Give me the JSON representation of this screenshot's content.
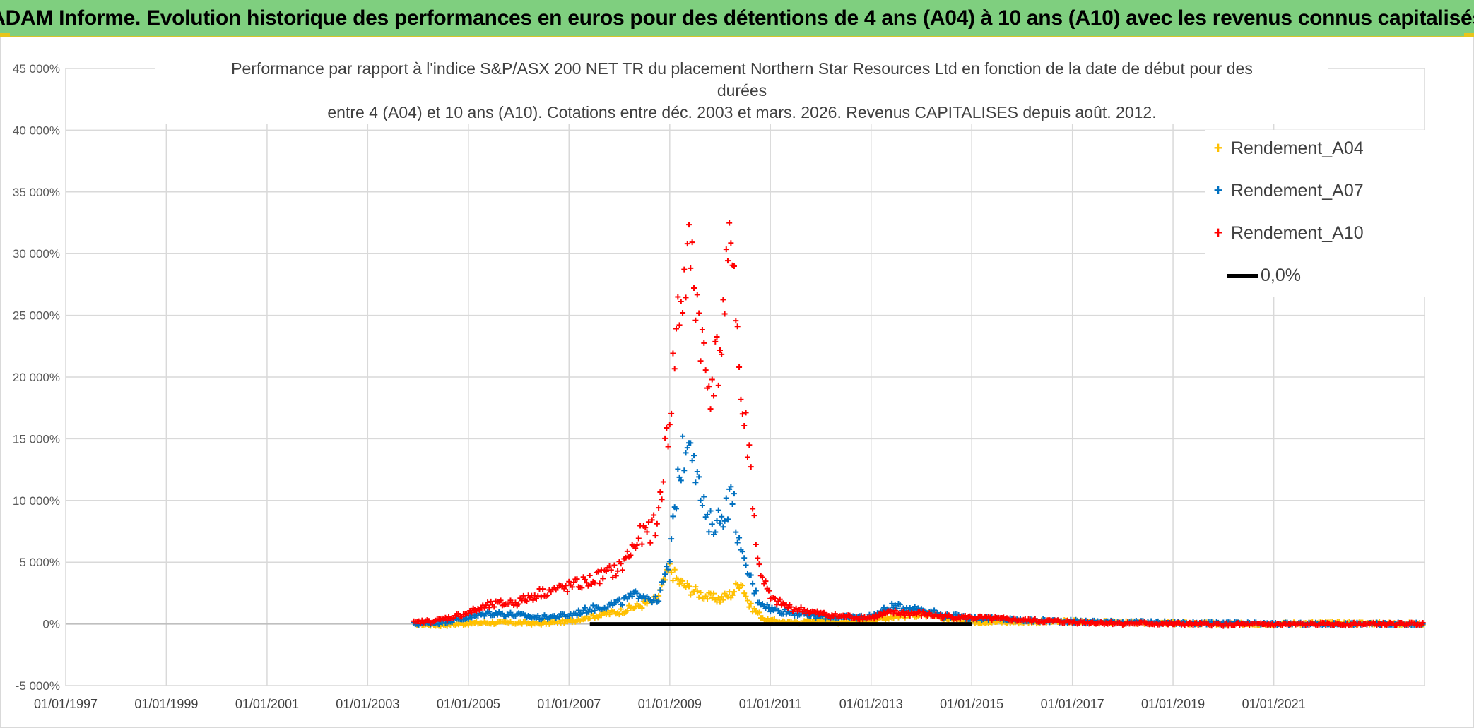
{
  "banner": {
    "title": "ADAM Informe. Evolution historique des performances en euros pour des détentions de 4 ans (A04) à 10 ans (A10) avec les revenus connus capitalisés"
  },
  "colors": {
    "banner_bg": "#7fcf7f",
    "A04": "#ffc000",
    "A07": "#0070c0",
    "A10": "#ff0000",
    "zero_line": "#000000",
    "grid": "#d9d9d9"
  },
  "chart_data": {
    "type": "scatter",
    "title_lines": [
      "Performance par rapport à l'indice S&P/ASX 200 NET TR  du placement Northern Star Resources Ltd en fonction de la date de début pour des",
      "durées",
      "entre 4 (A04) et 10 ans (A10). Cotations entre déc. 2003 et mars. 2026. Revenus CAPITALISES depuis août. 2012."
    ],
    "xlabel": "",
    "ylabel": "",
    "x_range": [
      "1997-01-01",
      "2023-12-31"
    ],
    "ylim": [
      -5000,
      45000
    ],
    "y_ticks": [
      -5000,
      0,
      5000,
      10000,
      15000,
      20000,
      25000,
      30000,
      35000,
      40000,
      45000
    ],
    "y_tick_labels": [
      "-5 000%",
      "0%",
      "5 000%",
      "10 000%",
      "15 000%",
      "20 000%",
      "25 000%",
      "30 000%",
      "35 000%",
      "40 000%",
      "45 000%"
    ],
    "x_ticks": [
      "1997-01-01",
      "1999-01-01",
      "2001-01-01",
      "2003-01-01",
      "2005-01-01",
      "2007-01-01",
      "2009-01-01",
      "2011-01-01",
      "2013-01-01",
      "2015-01-01",
      "2017-01-01",
      "2019-01-01",
      "2021-01-01"
    ],
    "x_tick_labels": [
      "01/01/1997",
      "01/01/1999",
      "01/01/2001",
      "01/01/2003",
      "01/01/2005",
      "01/01/2007",
      "01/01/2009",
      "01/01/2011",
      "01/01/2013",
      "01/01/2015",
      "01/01/2017",
      "01/01/2019",
      "01/01/2021"
    ],
    "grid": true,
    "legend_position": "top-right",
    "series": [
      {
        "name": "Rendement_A04",
        "marker": "+",
        "color": "#ffc000",
        "points": [
          [
            "2003-12-01",
            0
          ],
          [
            "2004-06-01",
            -100
          ],
          [
            "2005-01-01",
            50
          ],
          [
            "2005-06-01",
            100
          ],
          [
            "2006-01-01",
            80
          ],
          [
            "2006-06-01",
            30
          ],
          [
            "2007-01-01",
            200
          ],
          [
            "2007-06-01",
            600
          ],
          [
            "2008-01-01",
            1000
          ],
          [
            "2008-06-01",
            1500
          ],
          [
            "2008-10-01",
            2000
          ],
          [
            "2009-01-01",
            4500
          ],
          [
            "2009-03-01",
            3500
          ],
          [
            "2009-06-01",
            2800
          ],
          [
            "2009-10-01",
            2200
          ],
          [
            "2010-01-01",
            2000
          ],
          [
            "2010-04-01",
            2500
          ],
          [
            "2010-06-01",
            3600
          ],
          [
            "2010-08-01",
            1500
          ],
          [
            "2010-12-01",
            300
          ],
          [
            "2011-06-01",
            100
          ],
          [
            "2012-01-01",
            300
          ],
          [
            "2012-06-01",
            100
          ],
          [
            "2013-01-01",
            300
          ],
          [
            "2013-06-01",
            600
          ],
          [
            "2014-01-01",
            800
          ],
          [
            "2014-06-01",
            500
          ],
          [
            "2015-01-01",
            200
          ],
          [
            "2016-01-01",
            150
          ],
          [
            "2017-01-01",
            200
          ],
          [
            "2018-01-01",
            100
          ],
          [
            "2019-01-01",
            50
          ],
          [
            "2020-01-01",
            0
          ],
          [
            "2021-01-01",
            20
          ],
          [
            "2022-01-01",
            80
          ],
          [
            "2023-01-01",
            50
          ],
          [
            "2023-12-31",
            0
          ]
        ]
      },
      {
        "name": "Rendement_A07",
        "marker": "+",
        "color": "#0070c0",
        "points": [
          [
            "2003-12-01",
            0
          ],
          [
            "2004-06-01",
            100
          ],
          [
            "2005-01-01",
            500
          ],
          [
            "2005-06-01",
            900
          ],
          [
            "2006-01-01",
            700
          ],
          [
            "2006-06-01",
            500
          ],
          [
            "2007-01-01",
            700
          ],
          [
            "2007-06-01",
            1200
          ],
          [
            "2008-01-01",
            1700
          ],
          [
            "2008-06-01",
            2500
          ],
          [
            "2008-10-01",
            1800
          ],
          [
            "2009-01-01",
            5000
          ],
          [
            "2009-03-01",
            12000
          ],
          [
            "2009-06-01",
            16000
          ],
          [
            "2009-08-01",
            11000
          ],
          [
            "2009-10-01",
            8000
          ],
          [
            "2010-01-01",
            8500
          ],
          [
            "2010-04-01",
            10500
          ],
          [
            "2010-06-01",
            5500
          ],
          [
            "2010-08-01",
            4000
          ],
          [
            "2010-10-01",
            2000
          ],
          [
            "2011-01-01",
            1200
          ],
          [
            "2011-06-01",
            900
          ],
          [
            "2012-01-01",
            600
          ],
          [
            "2012-06-01",
            500
          ],
          [
            "2013-01-01",
            600
          ],
          [
            "2013-06-01",
            1400
          ],
          [
            "2014-01-01",
            1200
          ],
          [
            "2014-06-01",
            700
          ],
          [
            "2015-01-01",
            500
          ],
          [
            "2016-01-01",
            300
          ],
          [
            "2017-01-01",
            200
          ],
          [
            "2018-01-01",
            150
          ],
          [
            "2019-01-01",
            100
          ],
          [
            "2020-01-01",
            50
          ],
          [
            "2021-01-01",
            0
          ],
          [
            "2022-01-01",
            0
          ],
          [
            "2023-12-31",
            0
          ]
        ]
      },
      {
        "name": "Rendement_A10",
        "marker": "+",
        "color": "#ff0000",
        "points": [
          [
            "2003-12-01",
            100
          ],
          [
            "2004-06-01",
            300
          ],
          [
            "2005-01-01",
            900
          ],
          [
            "2005-06-01",
            1500
          ],
          [
            "2006-01-01",
            1800
          ],
          [
            "2006-06-01",
            2500
          ],
          [
            "2007-01-01",
            3000
          ],
          [
            "2007-06-01",
            3500
          ],
          [
            "2008-01-01",
            4500
          ],
          [
            "2008-06-01",
            7000
          ],
          [
            "2008-10-01",
            8000
          ],
          [
            "2009-01-01",
            17000
          ],
          [
            "2009-03-01",
            25000
          ],
          [
            "2009-06-01",
            30000
          ],
          [
            "2009-08-01",
            25000
          ],
          [
            "2009-10-01",
            19000
          ],
          [
            "2010-01-01",
            22000
          ],
          [
            "2010-04-01",
            32000
          ],
          [
            "2010-06-01",
            18000
          ],
          [
            "2010-08-01",
            14000
          ],
          [
            "2010-10-01",
            5000
          ],
          [
            "2011-01-01",
            2000
          ],
          [
            "2011-06-01",
            1300
          ],
          [
            "2012-01-01",
            800
          ],
          [
            "2012-06-01",
            600
          ],
          [
            "2013-01-01",
            500
          ],
          [
            "2013-06-01",
            900
          ],
          [
            "2014-01-01",
            800
          ],
          [
            "2014-06-01",
            600
          ],
          [
            "2015-01-01",
            500
          ],
          [
            "2016-01-01",
            300
          ],
          [
            "2017-01-01",
            150
          ],
          [
            "2018-01-01",
            50
          ],
          [
            "2019-01-01",
            0
          ],
          [
            "2020-01-01",
            -50
          ],
          [
            "2021-01-01",
            -50
          ],
          [
            "2022-01-01",
            -30
          ],
          [
            "2023-12-31",
            0
          ]
        ]
      },
      {
        "name": "0,0%",
        "type": "line",
        "color": "#000000",
        "points": [
          [
            "2007-06-01",
            0
          ],
          [
            "2015-01-01",
            0
          ]
        ]
      }
    ]
  },
  "legend": [
    {
      "label": "Rendement_A04",
      "color": "#ffc000",
      "marker": "+"
    },
    {
      "label": "Rendement_A07",
      "color": "#0070c0",
      "marker": "+"
    },
    {
      "label": "Rendement_A10",
      "color": "#ff0000",
      "marker": "+"
    },
    {
      "label": "0,0%",
      "color": "#000000",
      "marker": "line"
    }
  ]
}
